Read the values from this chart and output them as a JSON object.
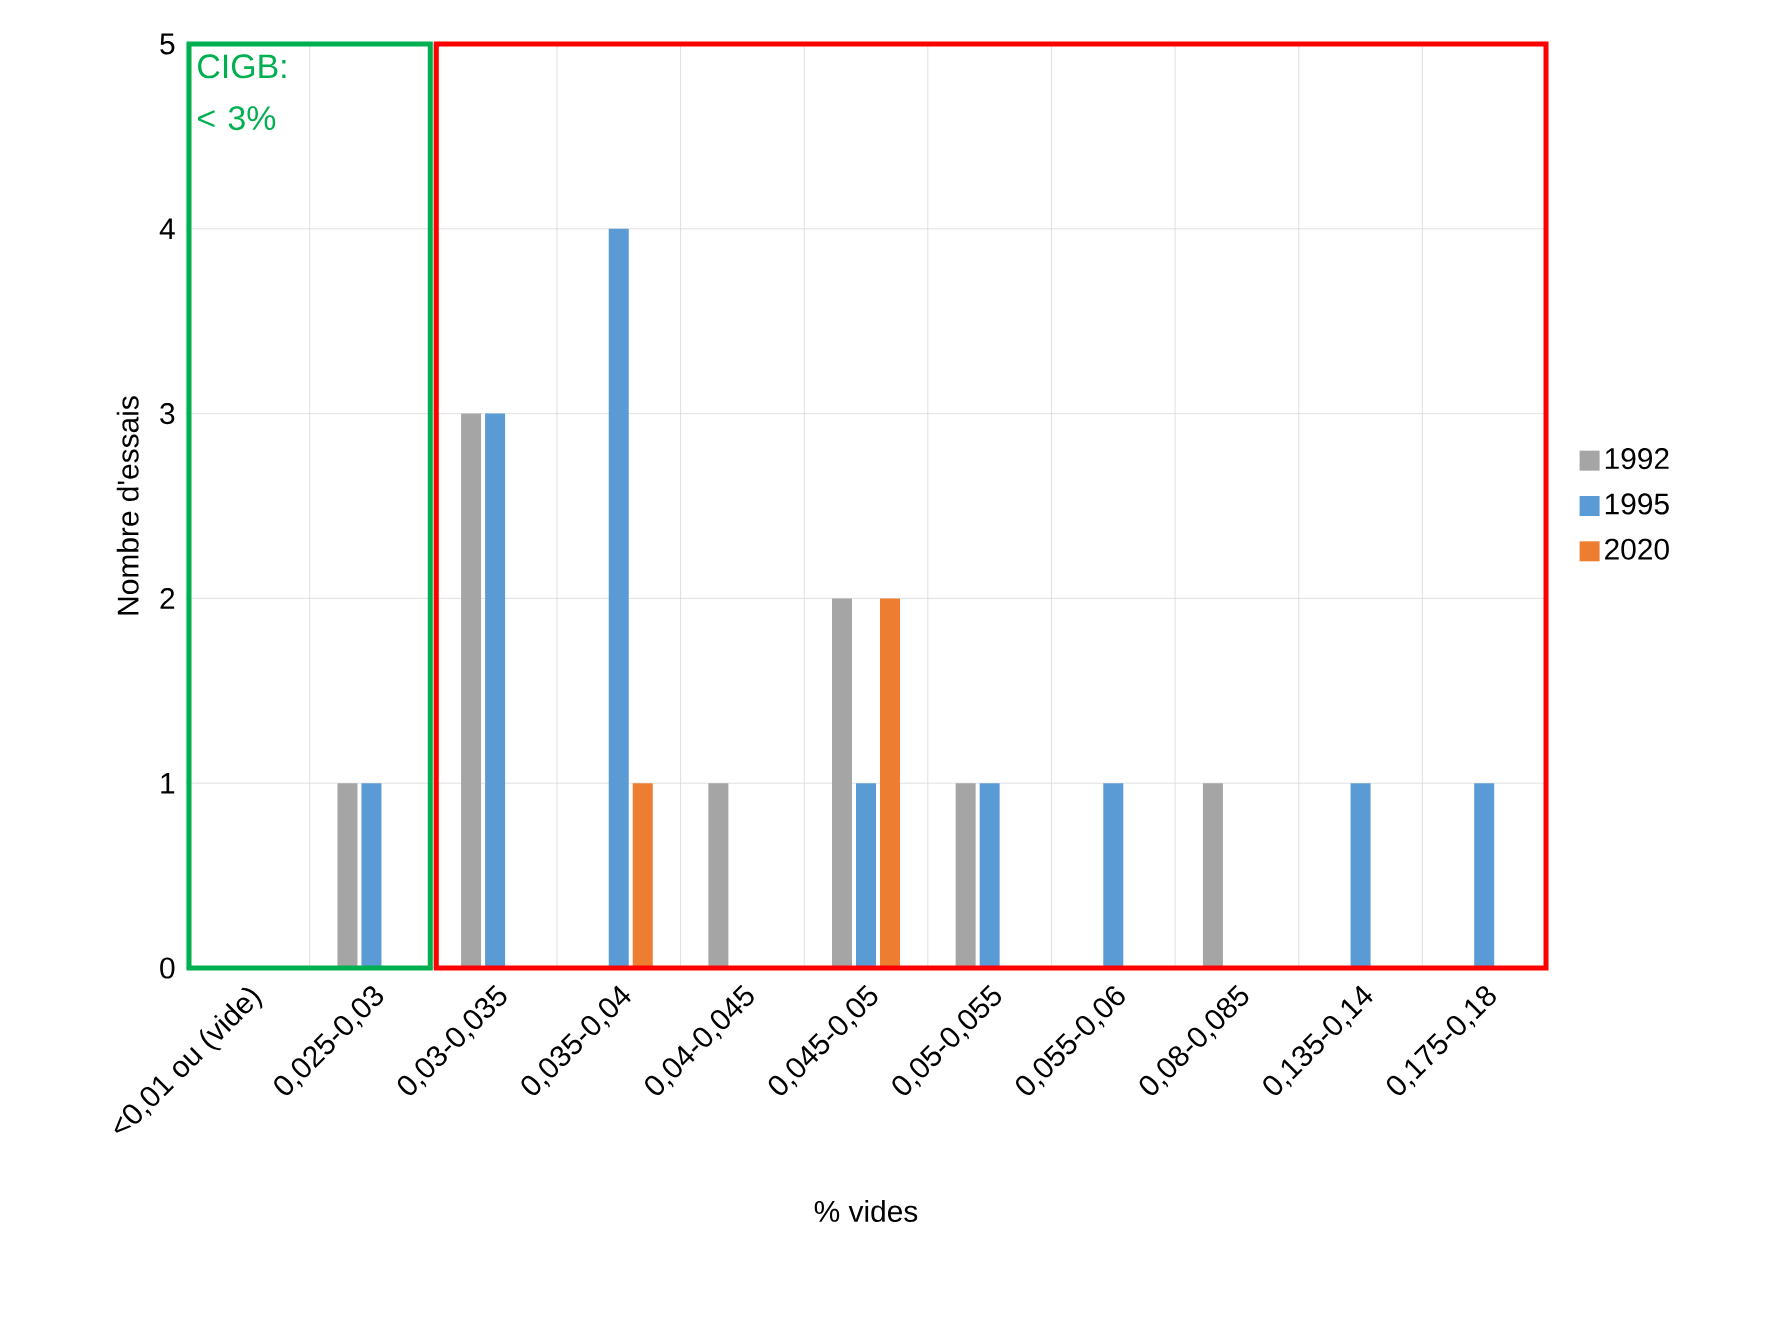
{
  "chart_data": {
    "type": "bar",
    "xlabel": "% vides",
    "ylabel": "Nombre d'essais",
    "categories": [
      "<0,01 ou (vide)",
      "0,025-0,03",
      "0,03-0,035",
      "0,035-0,04",
      "0,04-0,045",
      "0,045-0,05",
      "0,05-0,055",
      "0,055-0,06",
      "0,08-0,085",
      "0,135-0,14",
      "0,175-0,18"
    ],
    "series": [
      {
        "name": "1992",
        "color": "#a5a5a5",
        "values": [
          0,
          1,
          3,
          0,
          1,
          2,
          1,
          0,
          1,
          0,
          0
        ]
      },
      {
        "name": "1995",
        "color": "#5b9bd5",
        "values": [
          0,
          1,
          3,
          4,
          0,
          1,
          1,
          1,
          0,
          1,
          1
        ]
      },
      {
        "name": "2020",
        "color": "#ed7d31",
        "values": [
          0,
          0,
          0,
          1,
          0,
          2,
          0,
          0,
          0,
          0,
          0
        ]
      }
    ],
    "ylim": [
      0,
      5
    ],
    "yticks": [
      0,
      1,
      2,
      3,
      4,
      5
    ],
    "grid": true,
    "legend": "right",
    "annotations": [
      "CIGB: < 3%"
    ]
  }
}
